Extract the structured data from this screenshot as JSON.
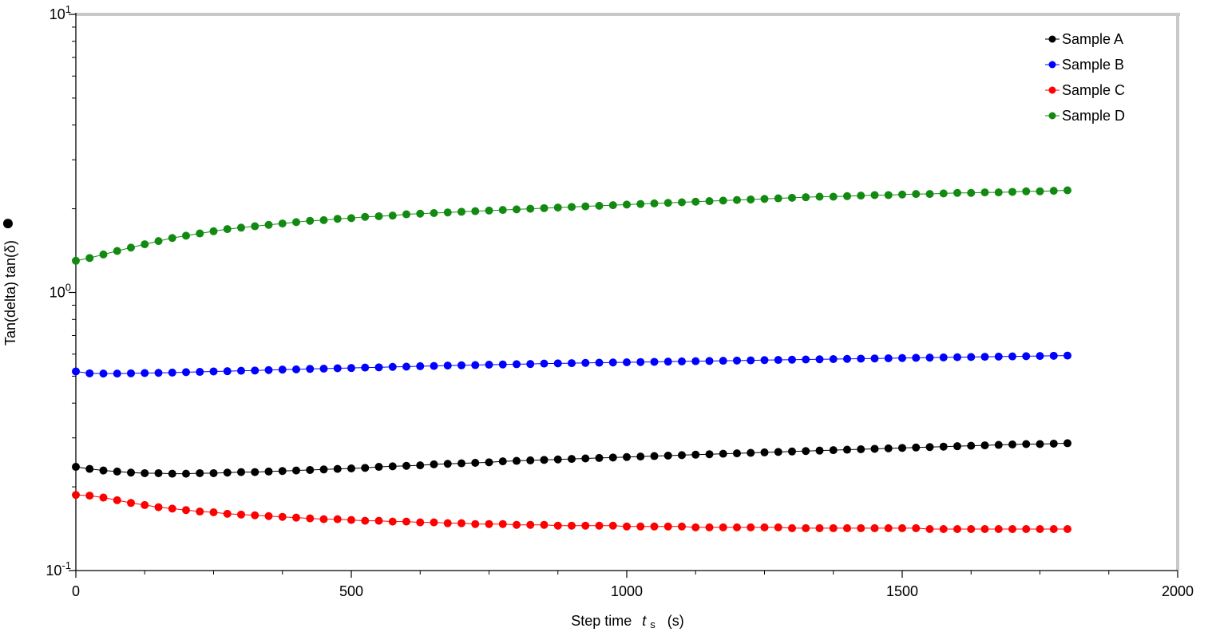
{
  "chart_data": {
    "type": "scatter",
    "xlabel": {
      "main": "Step time",
      "symbol": "t",
      "subscript": "s",
      "unit": "(s)"
    },
    "ylabel": "Tan(delta) tan(δ)",
    "ylabel_marker": "●",
    "xlim": [
      0,
      2000
    ],
    "ylim": [
      0.1,
      10
    ],
    "yscale": "log",
    "grid": false,
    "legend_position": "top-right",
    "x_ticks": [
      0,
      500,
      1000,
      1500,
      2000
    ],
    "x_tick_labels": [
      "0",
      "500",
      "1000",
      "1500",
      "2000"
    ],
    "y_ticks": [
      {
        "value": 0.1,
        "base": "10",
        "exp": "-1"
      },
      {
        "value": 1,
        "base": "10",
        "exp": "0"
      },
      {
        "value": 10,
        "base": "10",
        "exp": "1"
      }
    ],
    "x": [
      0,
      25,
      50,
      75,
      100,
      125,
      150,
      175,
      200,
      225,
      250,
      275,
      300,
      325,
      350,
      375,
      400,
      425,
      450,
      475,
      500,
      525,
      550,
      575,
      600,
      625,
      650,
      675,
      700,
      725,
      750,
      775,
      800,
      825,
      850,
      875,
      900,
      925,
      950,
      975,
      1000,
      1025,
      1050,
      1075,
      1100,
      1125,
      1150,
      1175,
      1200,
      1225,
      1250,
      1275,
      1300,
      1325,
      1350,
      1375,
      1400,
      1425,
      1450,
      1475,
      1500,
      1525,
      1550,
      1575,
      1600,
      1625,
      1650,
      1675,
      1700,
      1725,
      1750,
      1775,
      1800
    ],
    "series": [
      {
        "name": "Sample A",
        "color": "#000000",
        "values": [
          0.236,
          0.232,
          0.229,
          0.227,
          0.225,
          0.224,
          0.224,
          0.223,
          0.223,
          0.224,
          0.224,
          0.225,
          0.226,
          0.226,
          0.227,
          0.228,
          0.229,
          0.23,
          0.231,
          0.232,
          0.233,
          0.234,
          0.236,
          0.237,
          0.238,
          0.239,
          0.241,
          0.242,
          0.243,
          0.244,
          0.245,
          0.247,
          0.248,
          0.249,
          0.25,
          0.251,
          0.252,
          0.253,
          0.254,
          0.255,
          0.256,
          0.257,
          0.258,
          0.259,
          0.26,
          0.261,
          0.262,
          0.263,
          0.264,
          0.265,
          0.266,
          0.267,
          0.268,
          0.269,
          0.27,
          0.271,
          0.272,
          0.273,
          0.274,
          0.275,
          0.276,
          0.277,
          0.278,
          0.279,
          0.28,
          0.281,
          0.282,
          0.283,
          0.284,
          0.285,
          0.285,
          0.286,
          0.287
        ]
      },
      {
        "name": "Sample B",
        "color": "#0000ff",
        "values": [
          0.52,
          0.512,
          0.511,
          0.511,
          0.512,
          0.513,
          0.514,
          0.515,
          0.517,
          0.518,
          0.52,
          0.521,
          0.523,
          0.524,
          0.526,
          0.528,
          0.529,
          0.531,
          0.532,
          0.534,
          0.535,
          0.537,
          0.538,
          0.54,
          0.541,
          0.543,
          0.544,
          0.546,
          0.547,
          0.548,
          0.55,
          0.551,
          0.552,
          0.553,
          0.555,
          0.556,
          0.557,
          0.558,
          0.559,
          0.56,
          0.561,
          0.562,
          0.563,
          0.564,
          0.565,
          0.566,
          0.567,
          0.568,
          0.569,
          0.57,
          0.571,
          0.572,
          0.573,
          0.574,
          0.575,
          0.576,
          0.577,
          0.578,
          0.579,
          0.58,
          0.581,
          0.582,
          0.583,
          0.584,
          0.585,
          0.586,
          0.587,
          0.588,
          0.589,
          0.59,
          0.591,
          0.592,
          0.593
        ]
      },
      {
        "name": "Sample C",
        "color": "#ff0000",
        "values": [
          0.187,
          0.186,
          0.183,
          0.179,
          0.175,
          0.172,
          0.169,
          0.167,
          0.165,
          0.163,
          0.162,
          0.16,
          0.159,
          0.158,
          0.157,
          0.156,
          0.155,
          0.154,
          0.153,
          0.153,
          0.152,
          0.151,
          0.151,
          0.15,
          0.15,
          0.149,
          0.149,
          0.148,
          0.148,
          0.147,
          0.147,
          0.147,
          0.146,
          0.146,
          0.146,
          0.145,
          0.145,
          0.145,
          0.145,
          0.145,
          0.144,
          0.144,
          0.144,
          0.144,
          0.144,
          0.143,
          0.143,
          0.143,
          0.143,
          0.143,
          0.143,
          0.143,
          0.142,
          0.142,
          0.142,
          0.142,
          0.142,
          0.142,
          0.142,
          0.142,
          0.142,
          0.142,
          0.141,
          0.141,
          0.141,
          0.141,
          0.141,
          0.141,
          0.141,
          0.141,
          0.141,
          0.141,
          0.141
        ]
      },
      {
        "name": "Sample D",
        "color": "#128a12",
        "values": [
          1.3,
          1.33,
          1.37,
          1.41,
          1.45,
          1.49,
          1.53,
          1.57,
          1.6,
          1.63,
          1.66,
          1.69,
          1.71,
          1.73,
          1.75,
          1.77,
          1.79,
          1.81,
          1.82,
          1.84,
          1.85,
          1.87,
          1.88,
          1.89,
          1.91,
          1.92,
          1.93,
          1.94,
          1.95,
          1.96,
          1.97,
          1.98,
          1.99,
          2.0,
          2.01,
          2.02,
          2.03,
          2.04,
          2.05,
          2.06,
          2.07,
          2.08,
          2.09,
          2.1,
          2.11,
          2.12,
          2.13,
          2.14,
          2.15,
          2.16,
          2.17,
          2.18,
          2.19,
          2.2,
          2.21,
          2.21,
          2.22,
          2.23,
          2.24,
          2.24,
          2.25,
          2.26,
          2.26,
          2.27,
          2.28,
          2.28,
          2.29,
          2.29,
          2.3,
          2.31,
          2.31,
          2.32,
          2.33
        ]
      }
    ]
  }
}
